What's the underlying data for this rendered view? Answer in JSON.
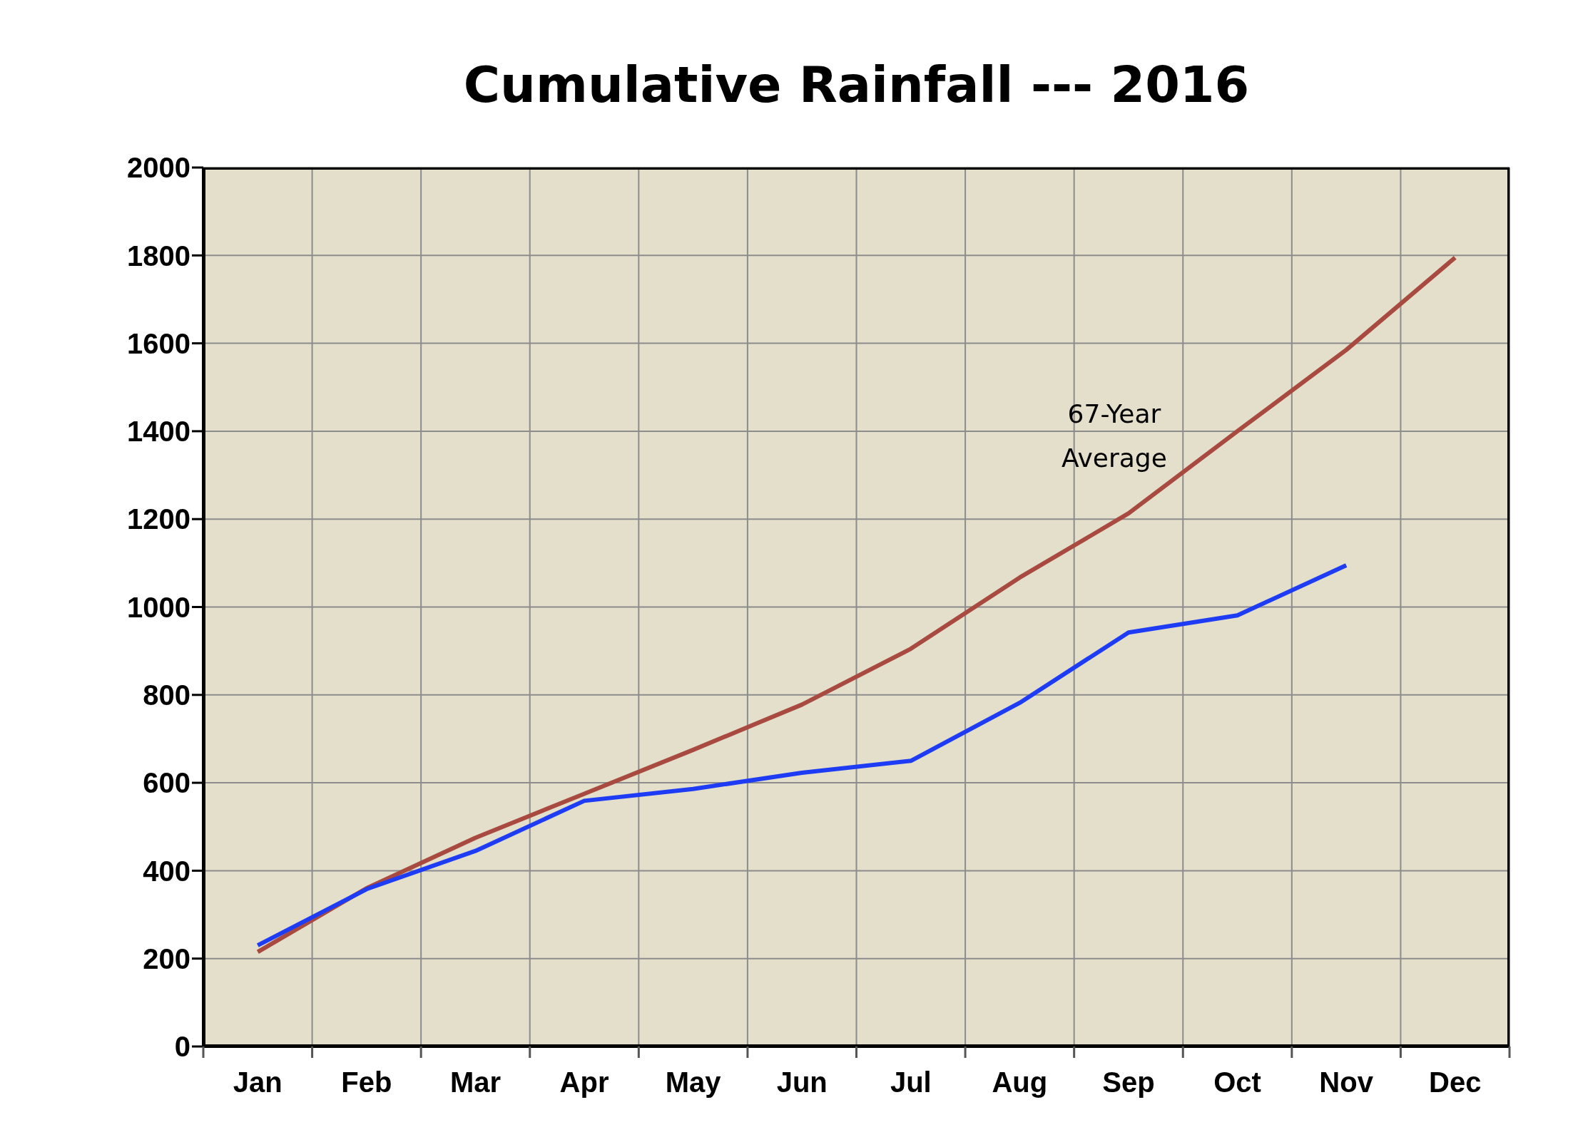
{
  "chart_data": {
    "type": "line",
    "title": "Cumulative Rainfall --- 2016",
    "categories": [
      "Jan",
      "Feb",
      "Mar",
      "Apr",
      "May",
      "Jun",
      "Jul",
      "Aug",
      "Sep",
      "Oct",
      "Nov",
      "Dec"
    ],
    "series": [
      {
        "name": "67-Year Average",
        "color": "#a84a40",
        "values": [
          215,
          360,
          475,
          575,
          675,
          778,
          905,
          1067,
          1213,
          1400,
          1585,
          1795
        ]
      },
      {
        "color": "#1f3cf5",
        "values": [
          230,
          358,
          445,
          559,
          586,
          623,
          650,
          782,
          942,
          981,
          1095,
          null
        ]
      }
    ],
    "ylim": [
      0,
      2000
    ],
    "yticks": [
      0,
      200,
      400,
      600,
      800,
      1000,
      1200,
      1400,
      1600,
      1800,
      2000
    ],
    "grid": true,
    "marker": "none",
    "line_style": "solid"
  }
}
